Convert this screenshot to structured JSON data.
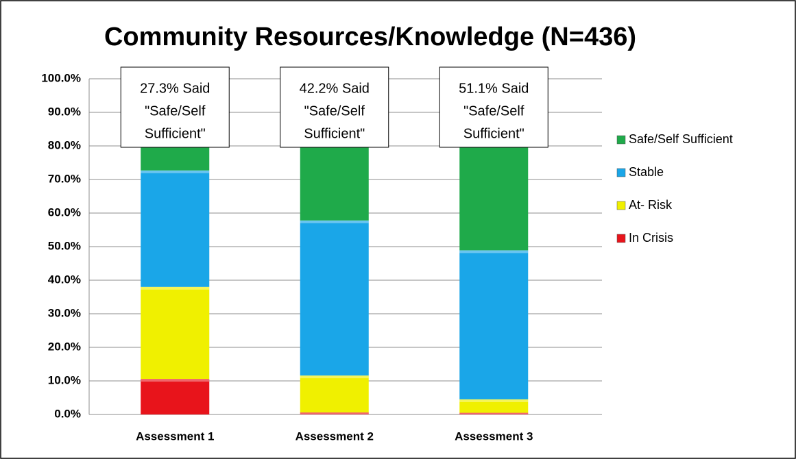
{
  "chart_data": {
    "type": "stacked_bar",
    "title": "Community Resources/Knowledge (N=436)",
    "categories": [
      "Assessment 1",
      "Assessment 2",
      "Assessment 3"
    ],
    "series": [
      {
        "name": "In Crisis",
        "color": "#e8141b",
        "values": [
          10.6,
          0.6,
          0.5
        ]
      },
      {
        "name": "At- Risk",
        "color": "#f0f000",
        "values": [
          27.4,
          11.0,
          4.0
        ]
      },
      {
        "name": "Stable",
        "color": "#1aa6e8",
        "values": [
          34.7,
          46.2,
          44.4
        ]
      },
      {
        "name": "Safe/Self Sufficient",
        "color": "#1faa4a",
        "values": [
          27.3,
          42.2,
          51.1
        ]
      }
    ],
    "ylim": [
      0,
      100
    ],
    "yticks": [
      {
        "value": 0,
        "label": "0.0%"
      },
      {
        "value": 10,
        "label": "10.0%"
      },
      {
        "value": 20,
        "label": "20.0%"
      },
      {
        "value": 30,
        "label": "30.0%"
      },
      {
        "value": 40,
        "label": "40.0%"
      },
      {
        "value": 50,
        "label": "50.0%"
      },
      {
        "value": 60,
        "label": "60.0%"
      },
      {
        "value": 70,
        "label": "70.0%"
      },
      {
        "value": 80,
        "label": "80.0%"
      },
      {
        "value": 90,
        "label": "90.0%"
      },
      {
        "value": 100,
        "label": "100.0%"
      }
    ],
    "grid": true,
    "legend": "right",
    "annotations": [
      [
        "27.3% Said",
        "\"Safe/Self",
        "Sufficient\""
      ],
      [
        "42.2% Said",
        "\"Safe/Self",
        "Sufficient\""
      ],
      [
        "51.1% Said",
        "\"Safe/Self",
        "Sufficient\""
      ]
    ]
  }
}
